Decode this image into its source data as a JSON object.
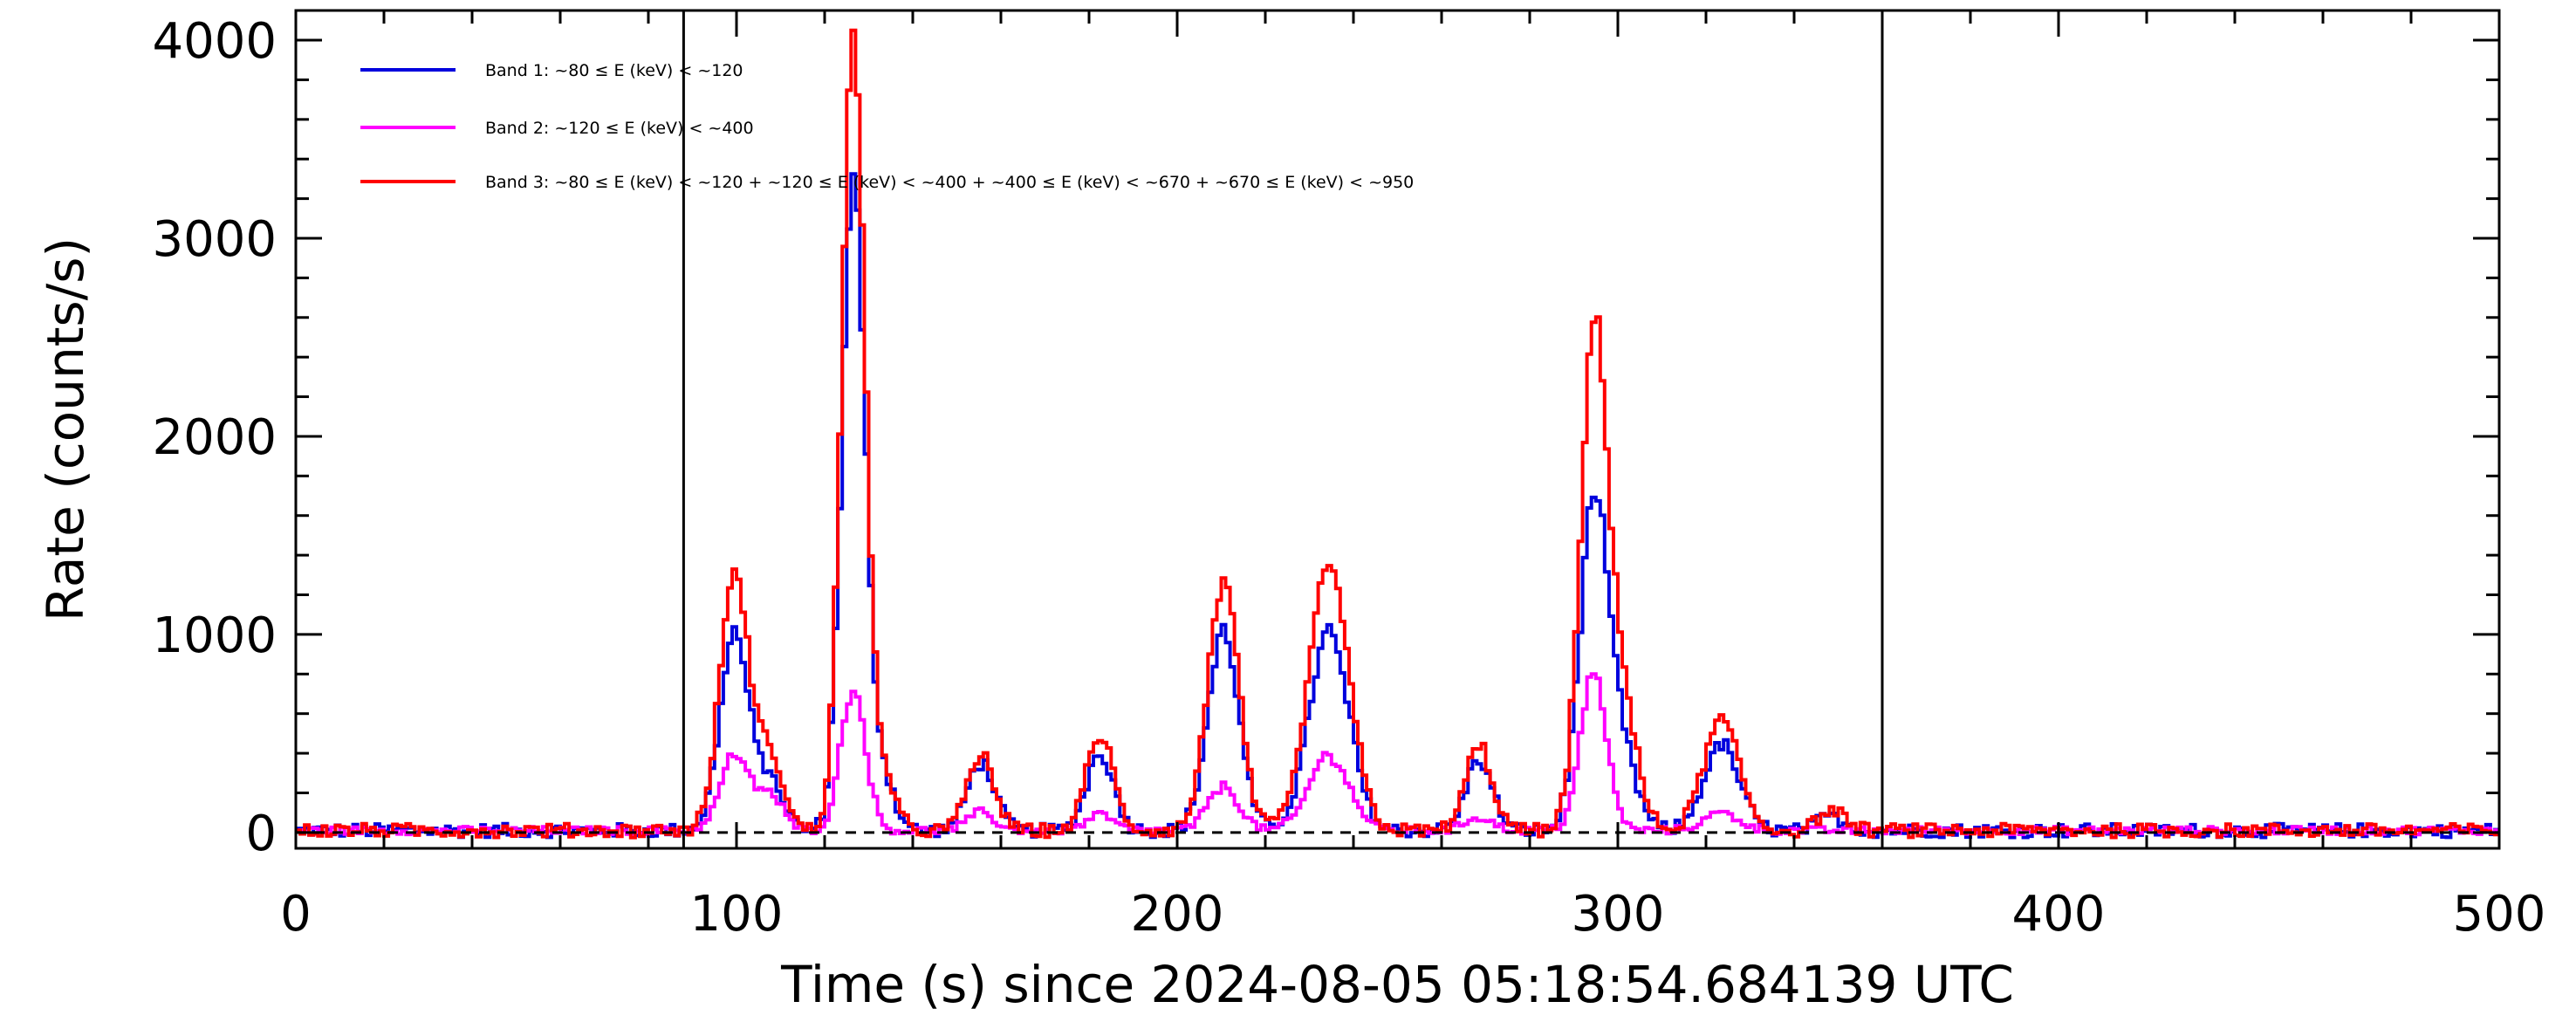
{
  "chart_data": {
    "type": "line",
    "xlabel": "Time (s) since 2024-08-05 05:18:54.684139 UTC",
    "ylabel": "Rate (counts/s)",
    "xlim": [
      0,
      500
    ],
    "ylim": [
      -80,
      4150
    ],
    "x_ticks": [
      0,
      100,
      200,
      300,
      400,
      500
    ],
    "x_tick_labels": [
      "0",
      "100",
      "200",
      "300",
      "400",
      "500"
    ],
    "y_ticks": [
      0,
      1000,
      2000,
      3000,
      4000
    ],
    "y_tick_labels": [
      "0",
      "1000",
      "2000",
      "3000",
      "4000"
    ],
    "grid": false,
    "legend_position": "top-left",
    "vertical_lines": [
      88,
      360
    ],
    "baseline": 0,
    "series": [
      {
        "name": "Band 1: ~80 ≤ E (keV) < ~120",
        "color": "#0000dd",
        "peaks": [
          {
            "center": 99,
            "amp": 1000,
            "width": 3.2
          },
          {
            "center": 107,
            "amp": 250,
            "width": 3
          },
          {
            "center": 126,
            "amp": 3250,
            "width": 2.6
          },
          {
            "center": 132,
            "amp": 300,
            "width": 3
          },
          {
            "center": 155,
            "amp": 350,
            "width": 3
          },
          {
            "center": 182,
            "amp": 400,
            "width": 3
          },
          {
            "center": 210,
            "amp": 1000,
            "width": 3.5
          },
          {
            "center": 234,
            "amp": 1000,
            "width": 4.5
          },
          {
            "center": 268,
            "amp": 350,
            "width": 3
          },
          {
            "center": 294,
            "amp": 1600,
            "width": 3.2
          },
          {
            "center": 300,
            "amp": 400,
            "width": 3.5
          },
          {
            "center": 323,
            "amp": 430,
            "width": 4
          },
          {
            "center": 348,
            "amp": 70,
            "width": 3
          }
        ]
      },
      {
        "name": "Band 2: ~120 ≤ E (keV) < ~400",
        "color": "#ff00ff",
        "peaks": [
          {
            "center": 99,
            "amp": 380,
            "width": 3.2
          },
          {
            "center": 107,
            "amp": 180,
            "width": 3
          },
          {
            "center": 126,
            "amp": 720,
            "width": 2.8
          },
          {
            "center": 155,
            "amp": 90,
            "width": 3
          },
          {
            "center": 182,
            "amp": 80,
            "width": 3
          },
          {
            "center": 210,
            "amp": 220,
            "width": 3.5
          },
          {
            "center": 234,
            "amp": 380,
            "width": 4.5
          },
          {
            "center": 268,
            "amp": 70,
            "width": 3
          },
          {
            "center": 294,
            "amp": 780,
            "width": 3
          },
          {
            "center": 323,
            "amp": 90,
            "width": 4
          }
        ]
      },
      {
        "name": "Band 3: ~80 ≤ E (keV) < ~120 + ~120 ≤ E (keV) < ~400 + ~400 ≤ E (keV) < ~670 + ~670 ≤ E (keV) < ~950",
        "color": "#ff0000",
        "peaks": [
          {
            "center": 99,
            "amp": 1300,
            "width": 3.2
          },
          {
            "center": 107,
            "amp": 380,
            "width": 3
          },
          {
            "center": 126,
            "amp": 3950,
            "width": 2.6
          },
          {
            "center": 132,
            "amp": 300,
            "width": 3
          },
          {
            "center": 155,
            "amp": 380,
            "width": 3
          },
          {
            "center": 182,
            "amp": 480,
            "width": 3
          },
          {
            "center": 210,
            "amp": 1250,
            "width": 3.5
          },
          {
            "center": 234,
            "amp": 1350,
            "width": 4.5
          },
          {
            "center": 268,
            "amp": 420,
            "width": 3
          },
          {
            "center": 294,
            "amp": 2400,
            "width": 3
          },
          {
            "center": 300,
            "amp": 700,
            "width": 3.5
          },
          {
            "center": 323,
            "amp": 560,
            "width": 4
          },
          {
            "center": 348,
            "amp": 100,
            "width": 3
          }
        ]
      }
    ]
  }
}
